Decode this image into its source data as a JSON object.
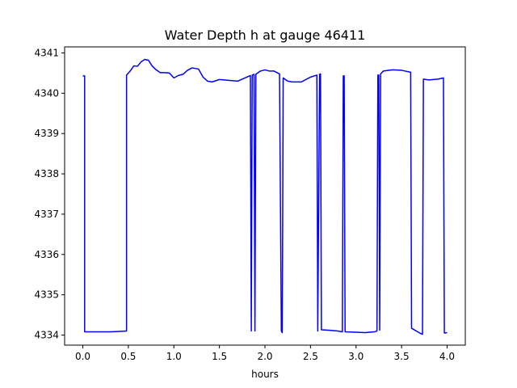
{
  "chart_data": {
    "type": "line",
    "title": "Water Depth h at gauge 46411",
    "xlabel": "hours",
    "ylabel": "",
    "xlim": [
      -0.2,
      4.2
    ],
    "ylim": [
      4333.75,
      4341.15
    ],
    "xticks": [
      0.0,
      0.5,
      1.0,
      1.5,
      2.0,
      2.5,
      3.0,
      3.5,
      4.0
    ],
    "xtick_labels": [
      "0.0",
      "0.5",
      "1.0",
      "1.5",
      "2.0",
      "2.5",
      "3.0",
      "3.5",
      "4.0"
    ],
    "yticks": [
      4334,
      4335,
      4336,
      4337,
      4338,
      4339,
      4340,
      4341
    ],
    "ytick_labels": [
      "4334",
      "4335",
      "4336",
      "4337",
      "4338",
      "4339",
      "4340",
      "4341"
    ],
    "grid": false,
    "series": [
      {
        "color": "#0000ff",
        "x": [
          0.0,
          0.02,
          0.02,
          0.1,
          0.2,
          0.3,
          0.4,
          0.48,
          0.48,
          0.52,
          0.56,
          0.6,
          0.64,
          0.68,
          0.72,
          0.76,
          0.8,
          0.85,
          0.9,
          0.95,
          1.0,
          1.05,
          1.1,
          1.15,
          1.2,
          1.27,
          1.32,
          1.37,
          1.42,
          1.5,
          1.6,
          1.7,
          1.8,
          1.84,
          1.85,
          1.86,
          1.88,
          1.89,
          1.9,
          1.95,
          2.0,
          2.05,
          2.1,
          2.16,
          2.18,
          2.19,
          2.2,
          2.25,
          2.3,
          2.4,
          2.5,
          2.57,
          2.58,
          2.6,
          2.61,
          2.62,
          2.7,
          2.8,
          2.85,
          2.86,
          2.87,
          2.88,
          3.0,
          3.1,
          3.2,
          3.23,
          3.24,
          3.25,
          3.26,
          3.27,
          3.3,
          3.4,
          3.5,
          3.6,
          3.61,
          3.7,
          3.73,
          3.74,
          3.8,
          3.9,
          3.96,
          3.97,
          4.0
        ],
        "y": [
          4340.43,
          4340.43,
          4334.08,
          4334.08,
          4334.08,
          4334.08,
          4334.09,
          4334.1,
          4340.45,
          4340.55,
          4340.68,
          4340.67,
          4340.78,
          4340.84,
          4340.82,
          4340.68,
          4340.59,
          4340.51,
          4340.51,
          4340.5,
          4340.38,
          4340.44,
          4340.47,
          4340.57,
          4340.63,
          4340.6,
          4340.4,
          4340.3,
          4340.28,
          4340.34,
          4340.32,
          4340.3,
          4340.4,
          4340.44,
          4334.1,
          4340.45,
          4340.47,
          4334.1,
          4340.47,
          4340.55,
          4340.58,
          4340.55,
          4340.55,
          4340.48,
          4334.1,
          4334.06,
          4340.38,
          4340.3,
          4340.28,
          4340.28,
          4340.4,
          4340.45,
          4334.1,
          4340.47,
          4340.48,
          4334.13,
          4334.12,
          4334.1,
          4334.08,
          4340.43,
          4340.43,
          4334.08,
          4334.07,
          4334.06,
          4334.08,
          4334.1,
          4340.45,
          4340.45,
          4334.12,
          4340.48,
          4340.55,
          4340.58,
          4340.57,
          4340.52,
          4334.17,
          4334.05,
          4334.02,
          4340.35,
          4340.33,
          4340.35,
          4340.38,
          4334.05,
          4334.06
        ]
      }
    ]
  }
}
